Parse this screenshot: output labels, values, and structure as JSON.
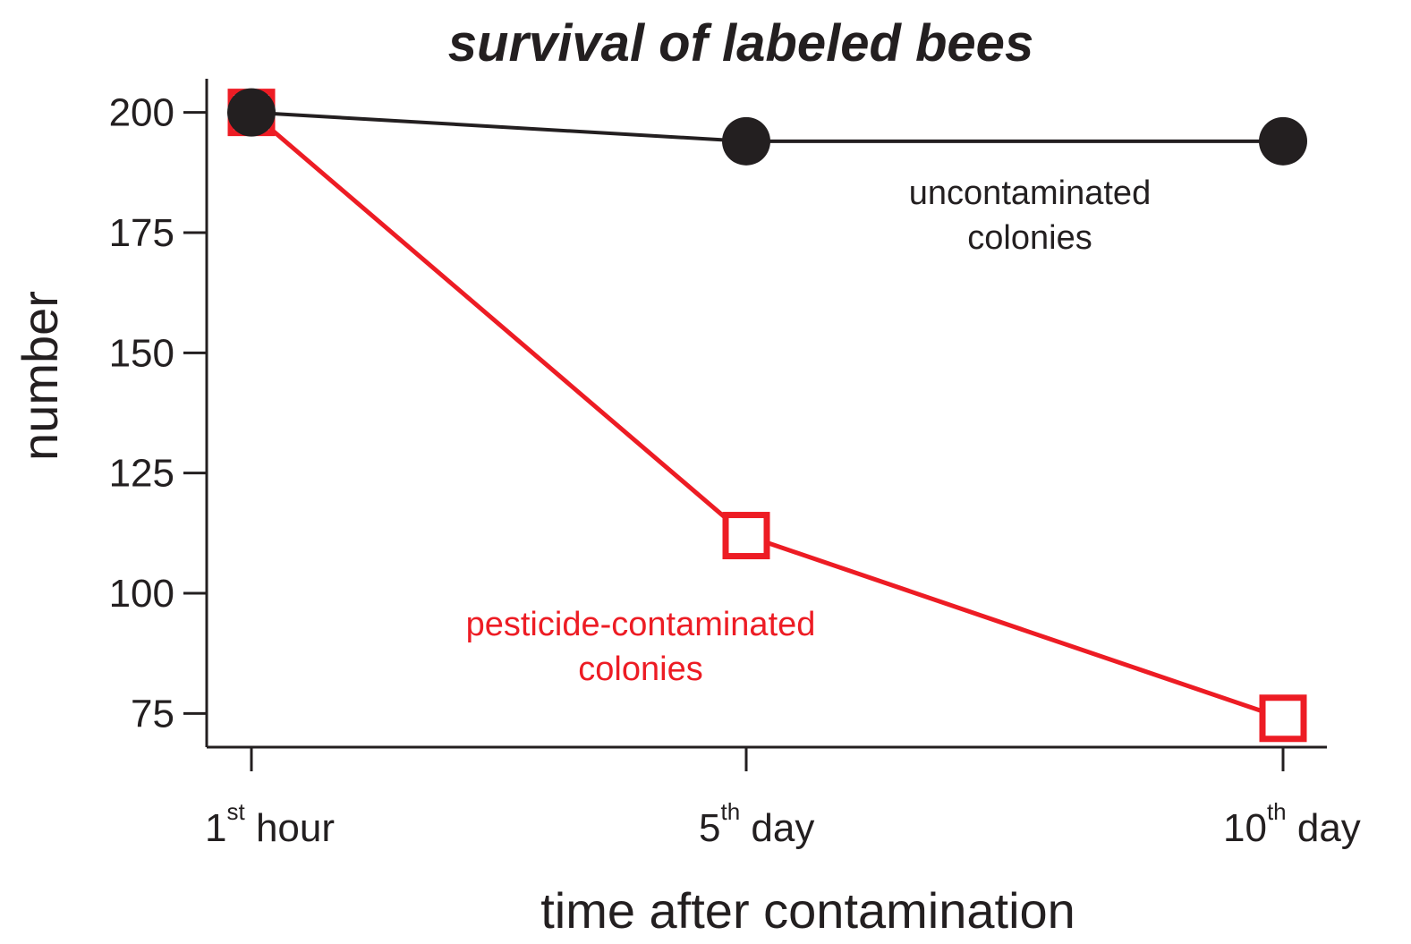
{
  "chart_data": {
    "type": "line",
    "title": "survival of labeled bees",
    "xlabel": "time after contamination",
    "ylabel": "number",
    "categories": [
      {
        "main": "1",
        "sup": "st",
        "rest": " hour"
      },
      {
        "main": "5",
        "sup": "th",
        "rest": " day"
      },
      {
        "main": "10",
        "sup": "th",
        "rest": " day"
      }
    ],
    "y_ticks": [
      75,
      100,
      125,
      150,
      175,
      200
    ],
    "ylim": [
      68,
      207
    ],
    "grid": false,
    "series": [
      {
        "name": "uncontaminated colonies",
        "label_lines": [
          "uncontaminated",
          "colonies"
        ],
        "values": [
          200,
          194,
          194
        ],
        "color": "#231f20",
        "marker": "filled-circle"
      },
      {
        "name": "pesticide-contaminated colonies",
        "label_lines": [
          "pesticide-contaminated",
          "colonies"
        ],
        "values": [
          200,
          112,
          74
        ],
        "color": "#ed1c24",
        "marker": "open-square"
      }
    ]
  }
}
